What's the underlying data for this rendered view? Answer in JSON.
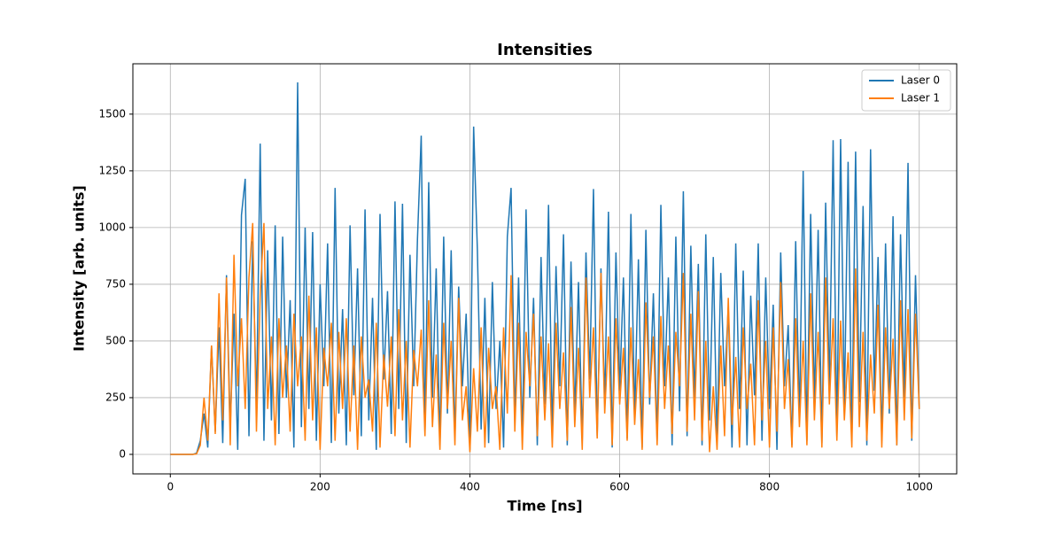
{
  "chart_data": {
    "type": "line",
    "title": "Intensities",
    "x_label": "Time [ns]",
    "y_label": "Intensity [arb. units]",
    "x": [
      0,
      5,
      10,
      15,
      20,
      25,
      30,
      35,
      40,
      45,
      50,
      55,
      60,
      65,
      70,
      75,
      80,
      85,
      90,
      95,
      100,
      105,
      110,
      115,
      120,
      125,
      130,
      135,
      140,
      145,
      150,
      155,
      160,
      165,
      170,
      175,
      180,
      185,
      190,
      195,
      200,
      205,
      210,
      215,
      220,
      225,
      230,
      235,
      240,
      245,
      250,
      255,
      260,
      265,
      270,
      275,
      280,
      285,
      290,
      295,
      300,
      305,
      310,
      315,
      320,
      325,
      330,
      335,
      340,
      345,
      350,
      355,
      360,
      365,
      370,
      375,
      380,
      385,
      390,
      395,
      400,
      405,
      410,
      415,
      420,
      425,
      430,
      435,
      440,
      445,
      450,
      455,
      460,
      465,
      470,
      475,
      480,
      485,
      490,
      495,
      500,
      505,
      510,
      515,
      520,
      525,
      530,
      535,
      540,
      545,
      550,
      555,
      560,
      565,
      570,
      575,
      580,
      585,
      590,
      595,
      600,
      605,
      610,
      615,
      620,
      625,
      630,
      635,
      640,
      645,
      650,
      655,
      660,
      665,
      670,
      675,
      680,
      685,
      690,
      695,
      700,
      705,
      710,
      715,
      720,
      725,
      730,
      735,
      740,
      745,
      750,
      755,
      760,
      765,
      770,
      775,
      780,
      785,
      790,
      795,
      800,
      805,
      810,
      815,
      820,
      825,
      830,
      835,
      840,
      845,
      850,
      855,
      860,
      865,
      870,
      875,
      880,
      885,
      890,
      895,
      900,
      905,
      910,
      915,
      920,
      925,
      930,
      935,
      940,
      945,
      950,
      955,
      960,
      965,
      970,
      975,
      980,
      985,
      990,
      995,
      1000
    ],
    "series": [
      {
        "name": "Laser 0",
        "color": "#1f77b4",
        "values": [
          0,
          0,
          0,
          0,
          0,
          0,
          0,
          5,
          60,
          180,
          30,
          480,
          100,
          560,
          50,
          790,
          120,
          620,
          20,
          1055,
          1215,
          80,
          940,
          200,
          1370,
          60,
          900,
          150,
          1010,
          90,
          960,
          250,
          680,
          30,
          1640,
          120,
          1000,
          200,
          980,
          60,
          750,
          300,
          930,
          50,
          1175,
          180,
          640,
          40,
          1010,
          260,
          820,
          80,
          1080,
          150,
          690,
          20,
          1060,
          330,
          720,
          90,
          1115,
          200,
          1105,
          50,
          880,
          300,
          950,
          1405,
          100,
          1200,
          250,
          820,
          40,
          960,
          180,
          900,
          70,
          740,
          300,
          620,
          20,
          1445,
          900,
          110,
          690,
          50,
          760,
          200,
          500,
          30,
          960,
          1175,
          150,
          780,
          60,
          1080,
          250,
          690,
          40,
          870,
          220,
          1100,
          90,
          830,
          300,
          970,
          40,
          850,
          180,
          760,
          60,
          890,
          330,
          1170,
          80,
          820,
          230,
          1070,
          30,
          890,
          280,
          780,
          70,
          1060,
          160,
          860,
          30,
          990,
          220,
          710,
          60,
          1100,
          300,
          780,
          40,
          960,
          190,
          1160,
          80,
          920,
          250,
          840,
          40,
          970,
          150,
          870,
          60,
          800,
          300,
          650,
          30,
          930,
          200,
          810,
          40,
          700,
          260,
          930,
          60,
          780,
          200,
          660,
          20,
          890,
          300,
          570,
          40,
          940,
          150,
          1250,
          60,
          1060,
          230,
          990,
          50,
          1110,
          290,
          1385,
          80,
          1390,
          200,
          1290,
          60,
          1335,
          230,
          1095,
          40,
          1345,
          280,
          870,
          60,
          930,
          180,
          1050,
          40,
          970,
          250,
          1285,
          60,
          790,
          200
        ]
      },
      {
        "name": "Laser 1",
        "color": "#ff7f0e",
        "values": [
          0,
          0,
          0,
          0,
          0,
          0,
          0,
          2,
          40,
          250,
          60,
          480,
          90,
          710,
          150,
          780,
          40,
          880,
          300,
          600,
          200,
          780,
          1020,
          100,
          700,
          1020,
          200,
          520,
          40,
          600,
          250,
          480,
          100,
          620,
          300,
          520,
          60,
          700,
          150,
          560,
          20,
          470,
          300,
          580,
          60,
          540,
          200,
          600,
          100,
          480,
          20,
          520,
          250,
          330,
          100,
          580,
          30,
          440,
          210,
          520,
          80,
          640,
          150,
          500,
          30,
          460,
          300,
          550,
          80,
          680,
          120,
          440,
          20,
          580,
          200,
          500,
          40,
          690,
          150,
          300,
          10,
          380,
          100,
          560,
          30,
          470,
          200,
          300,
          20,
          560,
          180,
          790,
          100,
          580,
          20,
          540,
          300,
          620,
          80,
          520,
          150,
          490,
          30,
          580,
          200,
          450,
          60,
          650,
          120,
          470,
          20,
          780,
          250,
          560,
          70,
          800,
          180,
          520,
          40,
          600,
          220,
          470,
          60,
          560,
          130,
          420,
          20,
          670,
          250,
          520,
          40,
          610,
          200,
          480,
          90,
          540,
          300,
          800,
          100,
          620,
          150,
          720,
          60,
          500,
          10,
          300,
          20,
          480,
          80,
          690,
          130,
          430,
          30,
          560,
          200,
          400,
          40,
          680,
          150,
          500,
          30,
          560,
          100,
          760,
          200,
          420,
          30,
          600,
          120,
          500,
          40,
          710,
          150,
          540,
          30,
          780,
          220,
          600,
          60,
          590,
          150,
          450,
          30,
          820,
          120,
          540,
          60,
          440,
          180,
          660,
          30,
          560,
          200,
          510,
          40,
          680,
          150,
          640,
          70,
          620,
          200
        ]
      }
    ],
    "xlim": [
      -50,
      1050
    ],
    "ylim": [
      -86,
      1722
    ],
    "xticks": [
      0,
      200,
      400,
      600,
      800,
      1000
    ],
    "yticks": [
      0,
      250,
      500,
      750,
      1000,
      1250,
      1500
    ],
    "grid": true,
    "legend": "upper right"
  }
}
